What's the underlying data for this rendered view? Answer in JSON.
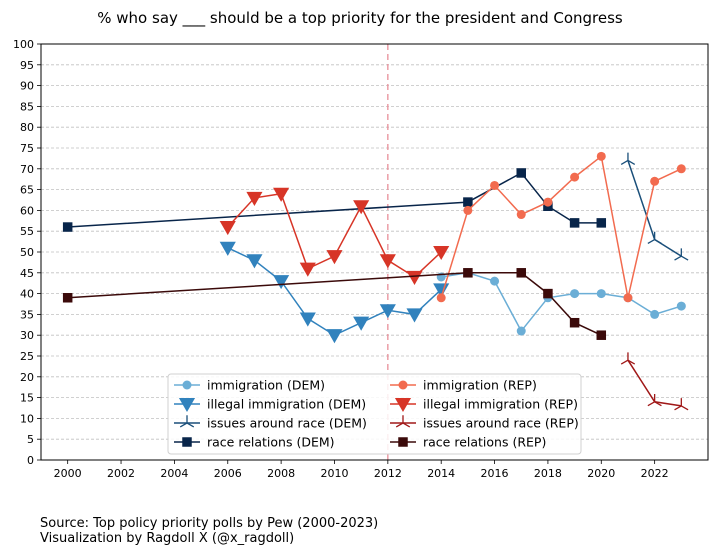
{
  "chart_data": {
    "type": "line",
    "title": "% who say ___ should be a top priority for the president and Congress",
    "xlabel": "",
    "ylabel": "",
    "xlim": [
      1999,
      2024
    ],
    "ylim": [
      0,
      100
    ],
    "x_ticks": [
      "2000",
      "2002",
      "2004",
      "2006",
      "2008",
      "2010",
      "2012",
      "2014",
      "2016",
      "2018",
      "2020",
      "2022"
    ],
    "y_ticks": [
      "0",
      "5",
      "10",
      "15",
      "20",
      "25",
      "30",
      "35",
      "40",
      "45",
      "50",
      "55",
      "60",
      "65",
      "70",
      "75",
      "80",
      "85",
      "90",
      "95",
      "100"
    ],
    "grid": "horizontal dashed",
    "reference_line": {
      "x": 2012,
      "color": "#e88f9a",
      "style": "dashed"
    },
    "legend_location": "lower center",
    "series": [
      {
        "name": "immigration (DEM)",
        "color": "#6baed6",
        "marker": "circle",
        "x": [
          2014,
          2015,
          2016,
          2017,
          2018,
          2019,
          2020,
          2021,
          2022,
          2023
        ],
        "y": [
          44,
          45,
          43,
          31,
          39,
          40,
          40,
          39,
          35,
          37
        ]
      },
      {
        "name": "illegal immigration (DEM)",
        "color": "#3182bd",
        "marker": "triangle-down",
        "x": [
          2006,
          2007,
          2008,
          2009,
          2010,
          2011,
          2012,
          2013,
          2014
        ],
        "y": [
          51,
          48,
          43,
          34,
          30,
          33,
          36,
          35,
          41
        ]
      },
      {
        "name": "issues around race (DEM)",
        "color": "#1a4f7a",
        "marker": "tri",
        "x": [
          2021,
          2022,
          2023
        ],
        "y": [
          72,
          53,
          49
        ]
      },
      {
        "name": "race relations (DEM)",
        "color": "#08254a",
        "marker": "square",
        "x": [
          2000,
          2015,
          2017,
          2018,
          2019,
          2020
        ],
        "y": [
          56,
          62,
          69,
          61,
          57,
          57
        ]
      },
      {
        "name": "immigration (REP)",
        "color": "#f26b4f",
        "marker": "circle",
        "x": [
          2014,
          2015,
          2016,
          2017,
          2018,
          2019,
          2020,
          2021,
          2022,
          2023
        ],
        "y": [
          39,
          60,
          66,
          59,
          62,
          68,
          73,
          39,
          67,
          70
        ]
      },
      {
        "name": "illegal immigration (REP)",
        "color": "#d73527",
        "marker": "triangle-down",
        "x": [
          2006,
          2007,
          2008,
          2009,
          2010,
          2011,
          2012,
          2013,
          2014
        ],
        "y": [
          56,
          63,
          64,
          46,
          49,
          61,
          48,
          44,
          50
        ]
      },
      {
        "name": "issues around race (REP)",
        "color": "#a01818",
        "marker": "tri",
        "x": [
          2021,
          2022,
          2023
        ],
        "y": [
          24,
          14,
          13
        ]
      },
      {
        "name": "race relations (REP)",
        "color": "#3b0a0a",
        "marker": "square",
        "x": [
          2000,
          2015,
          2017,
          2018,
          2019,
          2020
        ],
        "y": [
          39,
          45,
          45,
          40,
          33,
          30
        ]
      }
    ]
  },
  "source": {
    "line1": "Source: Top policy priority polls by Pew (2000-2023)",
    "line2": "Visualization by Ragdoll X (@x_ragdoll)"
  }
}
